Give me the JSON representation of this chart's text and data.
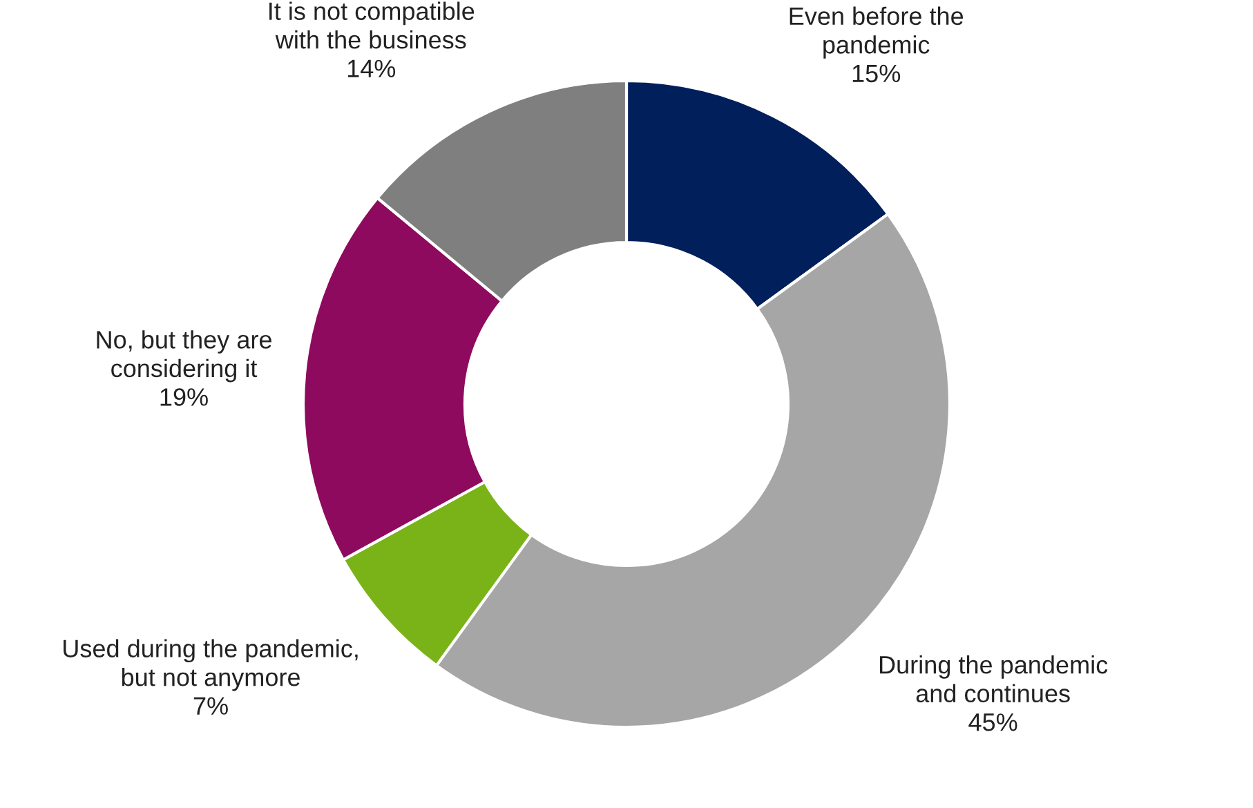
{
  "chart_data": {
    "type": "donut",
    "categories": [
      "Even before the\npandemic",
      "During the pandemic\nand continues",
      "Used during the pandemic,\nbut not anymore",
      "No, but they are\nconsidering it",
      "It is not compatible\nwith the business"
    ],
    "values": [
      15,
      45,
      7,
      19,
      14
    ],
    "colors": [
      "#001f5b",
      "#a6a6a6",
      "#7ab317",
      "#8e0a5e",
      "#7f7f7f"
    ],
    "value_labels": [
      "15%",
      "45%",
      "7%",
      "19%",
      "14%"
    ]
  }
}
